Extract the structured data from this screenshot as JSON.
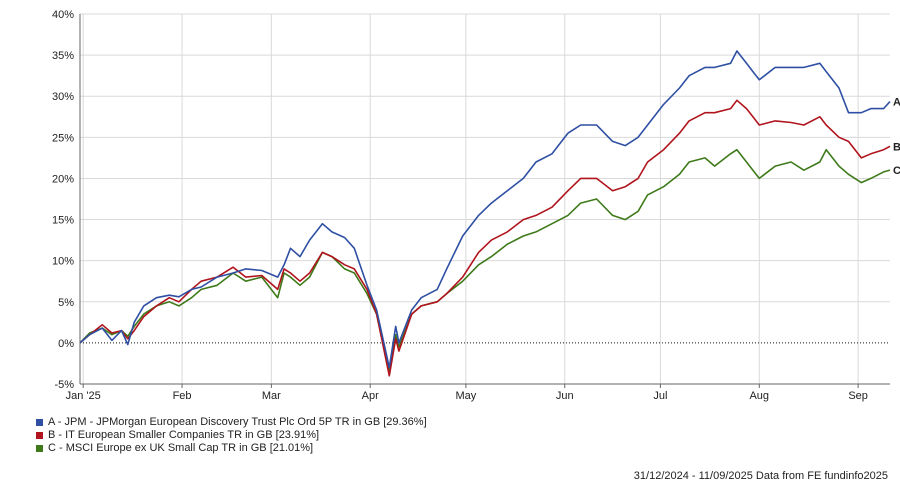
{
  "chart_data": {
    "type": "line",
    "ylim": [
      -5,
      40
    ],
    "y_ticks": [
      "40%",
      "35%",
      "30%",
      "25%",
      "20%",
      "15%",
      "10%",
      "5%",
      "0%",
      "-5%"
    ],
    "y_tick_values": [
      40,
      35,
      30,
      25,
      20,
      15,
      10,
      5,
      0,
      -5
    ],
    "x_range": [
      "2024-12-31",
      "2025-09-11"
    ],
    "x_ticks": [
      {
        "label": "Jan '25",
        "date": "2025-01-01"
      },
      {
        "label": "Feb",
        "date": "2025-02-01"
      },
      {
        "label": "Mar",
        "date": "2025-03-01"
      },
      {
        "label": "Apr",
        "date": "2025-04-01"
      },
      {
        "label": "May",
        "date": "2025-05-01"
      },
      {
        "label": "Jun",
        "date": "2025-06-01"
      },
      {
        "label": "Jul",
        "date": "2025-07-01"
      },
      {
        "label": "Aug",
        "date": "2025-08-01"
      },
      {
        "label": "Sep",
        "date": "2025-09-01"
      }
    ],
    "grid": true,
    "zero_line": "dotted",
    "series": [
      {
        "name": "A - JPM - JPMorgan European Discovery Trust Plc Ord 5P TR in GB [29.36%]",
        "end_label": "A",
        "color": "#2e4fa3",
        "points": [
          [
            "2024-12-31",
            0
          ],
          [
            "2025-01-03",
            1.0
          ],
          [
            "2025-01-07",
            1.8
          ],
          [
            "2025-01-10",
            0.3
          ],
          [
            "2025-01-13",
            1.5
          ],
          [
            "2025-01-15",
            -0.2
          ],
          [
            "2025-01-17",
            2.5
          ],
          [
            "2025-01-20",
            4.5
          ],
          [
            "2025-01-24",
            5.5
          ],
          [
            "2025-01-28",
            5.8
          ],
          [
            "2025-01-31",
            5.6
          ],
          [
            "2025-02-04",
            6.5
          ],
          [
            "2025-02-07",
            6.8
          ],
          [
            "2025-02-12",
            8.0
          ],
          [
            "2025-02-17",
            8.5
          ],
          [
            "2025-02-21",
            9.0
          ],
          [
            "2025-02-26",
            8.8
          ],
          [
            "2025-03-03",
            8.0
          ],
          [
            "2025-03-05",
            9.5
          ],
          [
            "2025-03-07",
            11.5
          ],
          [
            "2025-03-10",
            10.5
          ],
          [
            "2025-03-13",
            12.5
          ],
          [
            "2025-03-17",
            14.5
          ],
          [
            "2025-03-20",
            13.5
          ],
          [
            "2025-03-24",
            12.8
          ],
          [
            "2025-03-27",
            11.5
          ],
          [
            "2025-03-31",
            7.0
          ],
          [
            "2025-04-03",
            4.0
          ],
          [
            "2025-04-07",
            -3.0
          ],
          [
            "2025-04-09",
            2.0
          ],
          [
            "2025-04-10",
            0.0
          ],
          [
            "2025-04-14",
            4.0
          ],
          [
            "2025-04-17",
            5.5
          ],
          [
            "2025-04-22",
            6.5
          ],
          [
            "2025-04-25",
            9.0
          ],
          [
            "2025-04-30",
            13.0
          ],
          [
            "2025-05-05",
            15.5
          ],
          [
            "2025-05-09",
            17.0
          ],
          [
            "2025-05-14",
            18.5
          ],
          [
            "2025-05-19",
            20.0
          ],
          [
            "2025-05-23",
            22.0
          ],
          [
            "2025-05-28",
            23.0
          ],
          [
            "2025-06-02",
            25.5
          ],
          [
            "2025-06-06",
            26.5
          ],
          [
            "2025-06-11",
            26.5
          ],
          [
            "2025-06-16",
            24.5
          ],
          [
            "2025-06-20",
            24.0
          ],
          [
            "2025-06-24",
            25.0
          ],
          [
            "2025-06-27",
            26.5
          ],
          [
            "2025-07-02",
            29.0
          ],
          [
            "2025-07-07",
            31.0
          ],
          [
            "2025-07-10",
            32.5
          ],
          [
            "2025-07-15",
            33.5
          ],
          [
            "2025-07-18",
            33.5
          ],
          [
            "2025-07-23",
            34.0
          ],
          [
            "2025-07-25",
            35.5
          ],
          [
            "2025-07-28",
            34.0
          ],
          [
            "2025-07-30",
            33.0
          ],
          [
            "2025-08-01",
            32.0
          ],
          [
            "2025-08-06",
            33.5
          ],
          [
            "2025-08-11",
            33.5
          ],
          [
            "2025-08-15",
            33.5
          ],
          [
            "2025-08-20",
            34.0
          ],
          [
            "2025-08-22",
            33.0
          ],
          [
            "2025-08-26",
            31.0
          ],
          [
            "2025-08-29",
            28.0
          ],
          [
            "2025-09-02",
            28.0
          ],
          [
            "2025-09-05",
            28.5
          ],
          [
            "2025-09-09",
            28.5
          ],
          [
            "2025-09-11",
            29.36
          ]
        ]
      },
      {
        "name": "B - IT European Smaller Companies TR in GB [23.91%]",
        "end_label": "B",
        "color": "#b0141c",
        "points": [
          [
            "2024-12-31",
            0
          ],
          [
            "2025-01-03",
            1.0
          ],
          [
            "2025-01-07",
            2.2
          ],
          [
            "2025-01-10",
            1.2
          ],
          [
            "2025-01-13",
            1.5
          ],
          [
            "2025-01-15",
            0.5
          ],
          [
            "2025-01-17",
            1.5
          ],
          [
            "2025-01-20",
            3.2
          ],
          [
            "2025-01-24",
            4.5
          ],
          [
            "2025-01-28",
            5.5
          ],
          [
            "2025-01-31",
            5.0
          ],
          [
            "2025-02-04",
            6.5
          ],
          [
            "2025-02-07",
            7.5
          ],
          [
            "2025-02-12",
            8.0
          ],
          [
            "2025-02-17",
            9.2
          ],
          [
            "2025-02-21",
            8.0
          ],
          [
            "2025-02-26",
            8.2
          ],
          [
            "2025-03-03",
            6.5
          ],
          [
            "2025-03-05",
            9.0
          ],
          [
            "2025-03-07",
            8.5
          ],
          [
            "2025-03-10",
            7.5
          ],
          [
            "2025-03-13",
            8.5
          ],
          [
            "2025-03-17",
            11.0
          ],
          [
            "2025-03-20",
            10.5
          ],
          [
            "2025-03-24",
            9.5
          ],
          [
            "2025-03-27",
            9.0
          ],
          [
            "2025-03-31",
            6.5
          ],
          [
            "2025-04-03",
            3.5
          ],
          [
            "2025-04-07",
            -4.0
          ],
          [
            "2025-04-09",
            0.5
          ],
          [
            "2025-04-10",
            -1.0
          ],
          [
            "2025-04-14",
            3.5
          ],
          [
            "2025-04-17",
            4.5
          ],
          [
            "2025-04-22",
            5.0
          ],
          [
            "2025-04-25",
            6.0
          ],
          [
            "2025-04-30",
            8.0
          ],
          [
            "2025-05-05",
            11.0
          ],
          [
            "2025-05-09",
            12.5
          ],
          [
            "2025-05-14",
            13.5
          ],
          [
            "2025-05-19",
            15.0
          ],
          [
            "2025-05-23",
            15.5
          ],
          [
            "2025-05-28",
            16.5
          ],
          [
            "2025-06-02",
            18.5
          ],
          [
            "2025-06-06",
            20.0
          ],
          [
            "2025-06-11",
            20.0
          ],
          [
            "2025-06-16",
            18.5
          ],
          [
            "2025-06-20",
            19.0
          ],
          [
            "2025-06-24",
            20.0
          ],
          [
            "2025-06-27",
            22.0
          ],
          [
            "2025-07-02",
            23.5
          ],
          [
            "2025-07-07",
            25.5
          ],
          [
            "2025-07-10",
            27.0
          ],
          [
            "2025-07-15",
            28.0
          ],
          [
            "2025-07-18",
            28.0
          ],
          [
            "2025-07-23",
            28.5
          ],
          [
            "2025-07-25",
            29.5
          ],
          [
            "2025-07-28",
            28.5
          ],
          [
            "2025-07-30",
            27.5
          ],
          [
            "2025-08-01",
            26.5
          ],
          [
            "2025-08-06",
            27.0
          ],
          [
            "2025-08-11",
            26.8
          ],
          [
            "2025-08-15",
            26.5
          ],
          [
            "2025-08-20",
            27.5
          ],
          [
            "2025-08-22",
            26.5
          ],
          [
            "2025-08-26",
            25.0
          ],
          [
            "2025-08-29",
            24.5
          ],
          [
            "2025-09-02",
            22.5
          ],
          [
            "2025-09-05",
            23.0
          ],
          [
            "2025-09-09",
            23.5
          ],
          [
            "2025-09-11",
            23.91
          ]
        ]
      },
      {
        "name": "C - MSCI Europe ex UK Small Cap TR in GB [21.01%]",
        "end_label": "C",
        "color": "#3e7a1a",
        "points": [
          [
            "2024-12-31",
            0
          ],
          [
            "2025-01-03",
            1.2
          ],
          [
            "2025-01-07",
            1.8
          ],
          [
            "2025-01-10",
            1.0
          ],
          [
            "2025-01-13",
            1.5
          ],
          [
            "2025-01-15",
            0.8
          ],
          [
            "2025-01-17",
            2.0
          ],
          [
            "2025-01-20",
            3.5
          ],
          [
            "2025-01-24",
            4.5
          ],
          [
            "2025-01-28",
            5.0
          ],
          [
            "2025-01-31",
            4.5
          ],
          [
            "2025-02-04",
            5.5
          ],
          [
            "2025-02-07",
            6.5
          ],
          [
            "2025-02-12",
            7.0
          ],
          [
            "2025-02-17",
            8.5
          ],
          [
            "2025-02-21",
            7.5
          ],
          [
            "2025-02-26",
            8.0
          ],
          [
            "2025-03-03",
            5.5
          ],
          [
            "2025-03-05",
            8.5
          ],
          [
            "2025-03-07",
            8.0
          ],
          [
            "2025-03-10",
            7.0
          ],
          [
            "2025-03-13",
            8.0
          ],
          [
            "2025-03-17",
            11.0
          ],
          [
            "2025-03-20",
            10.5
          ],
          [
            "2025-03-24",
            9.0
          ],
          [
            "2025-03-27",
            8.5
          ],
          [
            "2025-03-31",
            6.0
          ],
          [
            "2025-04-03",
            3.5
          ],
          [
            "2025-04-07",
            -3.5
          ],
          [
            "2025-04-09",
            1.0
          ],
          [
            "2025-04-10",
            -0.5
          ],
          [
            "2025-04-14",
            3.5
          ],
          [
            "2025-04-17",
            4.5
          ],
          [
            "2025-04-22",
            5.0
          ],
          [
            "2025-04-25",
            6.0
          ],
          [
            "2025-04-30",
            7.5
          ],
          [
            "2025-05-05",
            9.5
          ],
          [
            "2025-05-09",
            10.5
          ],
          [
            "2025-05-14",
            12.0
          ],
          [
            "2025-05-19",
            13.0
          ],
          [
            "2025-05-23",
            13.5
          ],
          [
            "2025-05-28",
            14.5
          ],
          [
            "2025-06-02",
            15.5
          ],
          [
            "2025-06-06",
            17.0
          ],
          [
            "2025-06-11",
            17.5
          ],
          [
            "2025-06-16",
            15.5
          ],
          [
            "2025-06-20",
            15.0
          ],
          [
            "2025-06-24",
            16.0
          ],
          [
            "2025-06-27",
            18.0
          ],
          [
            "2025-07-02",
            19.0
          ],
          [
            "2025-07-07",
            20.5
          ],
          [
            "2025-07-10",
            22.0
          ],
          [
            "2025-07-15",
            22.5
          ],
          [
            "2025-07-18",
            21.5
          ],
          [
            "2025-07-23",
            23.0
          ],
          [
            "2025-07-25",
            23.5
          ],
          [
            "2025-07-28",
            22.0
          ],
          [
            "2025-07-30",
            21.0
          ],
          [
            "2025-08-01",
            20.0
          ],
          [
            "2025-08-06",
            21.5
          ],
          [
            "2025-08-11",
            22.0
          ],
          [
            "2025-08-15",
            21.0
          ],
          [
            "2025-08-20",
            22.0
          ],
          [
            "2025-08-22",
            23.5
          ],
          [
            "2025-08-26",
            21.5
          ],
          [
            "2025-08-29",
            20.5
          ],
          [
            "2025-09-02",
            19.5
          ],
          [
            "2025-09-05",
            20.0
          ],
          [
            "2025-09-09",
            20.8
          ],
          [
            "2025-09-11",
            21.01
          ]
        ]
      }
    ]
  },
  "legend": [
    {
      "label": "A - JPM - JPMorgan European Discovery Trust Plc Ord 5P TR in GB [29.36%]",
      "color": "#2e4fa3"
    },
    {
      "label": "B - IT European Smaller Companies TR in GB [23.91%]",
      "color": "#b0141c"
    },
    {
      "label": "C - MSCI Europe ex UK Small Cap TR in GB [21.01%]",
      "color": "#3e7a1a"
    }
  ],
  "footer": "31/12/2024 - 11/09/2025 Data from FE fundinfo2025"
}
